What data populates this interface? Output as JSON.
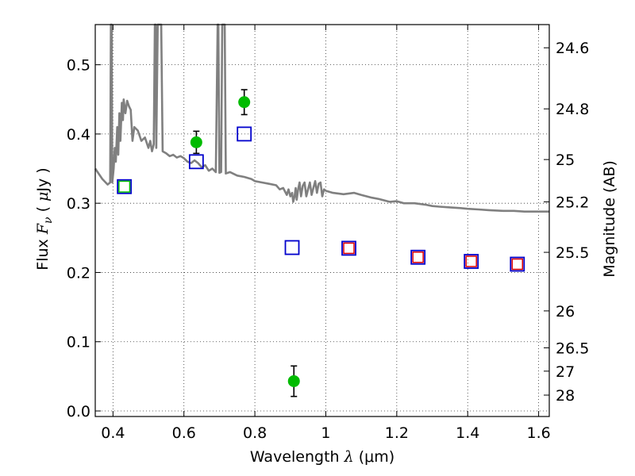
{
  "chart_data": {
    "type": "scatter",
    "xlabel": "Wavelength  λ (μm)",
    "xlabel_parts": {
      "text": "Wavelength  ",
      "symbol": "λ",
      "unit": " (μm)"
    },
    "ylabel_parts": {
      "text": "Flux  ",
      "symbol": "F",
      "subscript": "ν",
      "unit_open": "  ( ",
      "mu": "μ",
      "unit": "Jy )"
    },
    "y2label": "Magnitude (AB)",
    "xlim": [
      0.35,
      1.63
    ],
    "ylim": [
      -0.008,
      0.558
    ],
    "x_ticks": [
      {
        "v": 0.4,
        "label": "0.4"
      },
      {
        "v": 0.6,
        "label": "0.6"
      },
      {
        "v": 0.8,
        "label": "0.8"
      },
      {
        "v": 1.0,
        "label": "1"
      },
      {
        "v": 1.2,
        "label": "1.2"
      },
      {
        "v": 1.4,
        "label": "1.4"
      },
      {
        "v": 1.6,
        "label": "1.6"
      }
    ],
    "y_ticks": [
      {
        "v": 0.0,
        "label": "0.0"
      },
      {
        "v": 0.1,
        "label": "0.1"
      },
      {
        "v": 0.2,
        "label": "0.2"
      },
      {
        "v": 0.3,
        "label": "0.3"
      },
      {
        "v": 0.4,
        "label": "0.4"
      },
      {
        "v": 0.5,
        "label": "0.5"
      }
    ],
    "y2_ticks": [
      {
        "flux": 0.5245,
        "label": "24.6"
      },
      {
        "flux": 0.4363,
        "label": "24.8"
      },
      {
        "flux": 0.3631,
        "label": "25"
      },
      {
        "flux": 0.302,
        "label": "25.2"
      },
      {
        "flux": 0.2291,
        "label": "25.5"
      },
      {
        "flux": 0.1445,
        "label": "26"
      },
      {
        "flux": 0.0912,
        "label": "26.5"
      },
      {
        "flux": 0.0575,
        "label": "27"
      },
      {
        "flux": 0.0229,
        "label": "28"
      }
    ],
    "grid": true,
    "series": [
      {
        "kind": "line",
        "color": "#808080",
        "points": [
          [
            0.35,
            0.35
          ],
          [
            0.37,
            0.335
          ],
          [
            0.385,
            0.327
          ],
          [
            0.392,
            0.33
          ],
          [
            0.394,
            0.56
          ],
          [
            0.396,
            0.56
          ],
          [
            0.398,
            0.33
          ],
          [
            0.402,
            0.35
          ],
          [
            0.405,
            0.38
          ],
          [
            0.408,
            0.36
          ],
          [
            0.412,
            0.41
          ],
          [
            0.415,
            0.37
          ],
          [
            0.418,
            0.43
          ],
          [
            0.421,
            0.39
          ],
          [
            0.425,
            0.445
          ],
          [
            0.428,
            0.42
          ],
          [
            0.43,
            0.45
          ],
          [
            0.435,
            0.43
          ],
          [
            0.44,
            0.448
          ],
          [
            0.445,
            0.44
          ],
          [
            0.45,
            0.435
          ],
          [
            0.455,
            0.39
          ],
          [
            0.46,
            0.41
          ],
          [
            0.47,
            0.405
          ],
          [
            0.48,
            0.39
          ],
          [
            0.49,
            0.395
          ],
          [
            0.5,
            0.38
          ],
          [
            0.505,
            0.39
          ],
          [
            0.51,
            0.375
          ],
          [
            0.515,
            0.385
          ],
          [
            0.518,
            0.56
          ],
          [
            0.52,
            0.56
          ],
          [
            0.522,
            0.38
          ],
          [
            0.526,
            0.56
          ],
          [
            0.528,
            0.56
          ],
          [
            0.532,
            0.56
          ],
          [
            0.536,
            0.56
          ],
          [
            0.54,
            0.375
          ],
          [
            0.55,
            0.372
          ],
          [
            0.56,
            0.368
          ],
          [
            0.57,
            0.37
          ],
          [
            0.58,
            0.366
          ],
          [
            0.59,
            0.368
          ],
          [
            0.6,
            0.365
          ],
          [
            0.61,
            0.36
          ],
          [
            0.62,
            0.358
          ],
          [
            0.63,
            0.362
          ],
          [
            0.64,
            0.358
          ],
          [
            0.65,
            0.352
          ],
          [
            0.66,
            0.355
          ],
          [
            0.67,
            0.347
          ],
          [
            0.68,
            0.35
          ],
          [
            0.69,
            0.345
          ],
          [
            0.695,
            0.56
          ],
          [
            0.697,
            0.56
          ],
          [
            0.7,
            0.344
          ],
          [
            0.705,
            0.345
          ],
          [
            0.708,
            0.56
          ],
          [
            0.71,
            0.56
          ],
          [
            0.713,
            0.56
          ],
          [
            0.715,
            0.56
          ],
          [
            0.718,
            0.343
          ],
          [
            0.73,
            0.345
          ],
          [
            0.75,
            0.34
          ],
          [
            0.77,
            0.338
          ],
          [
            0.79,
            0.335
          ],
          [
            0.8,
            0.332
          ],
          [
            0.82,
            0.33
          ],
          [
            0.84,
            0.328
          ],
          [
            0.86,
            0.326
          ],
          [
            0.87,
            0.32
          ],
          [
            0.88,
            0.322
          ],
          [
            0.89,
            0.312
          ],
          [
            0.895,
            0.32
          ],
          [
            0.9,
            0.31
          ],
          [
            0.905,
            0.315
          ],
          [
            0.908,
            0.302
          ],
          [
            0.912,
            0.31
          ],
          [
            0.915,
            0.322
          ],
          [
            0.918,
            0.305
          ],
          [
            0.922,
            0.32
          ],
          [
            0.926,
            0.33
          ],
          [
            0.93,
            0.31
          ],
          [
            0.935,
            0.325
          ],
          [
            0.94,
            0.33
          ],
          [
            0.945,
            0.31
          ],
          [
            0.95,
            0.32
          ],
          [
            0.955,
            0.33
          ],
          [
            0.96,
            0.312
          ],
          [
            0.965,
            0.322
          ],
          [
            0.97,
            0.332
          ],
          [
            0.975,
            0.315
          ],
          [
            0.98,
            0.328
          ],
          [
            0.985,
            0.33
          ],
          [
            0.99,
            0.31
          ],
          [
            0.995,
            0.32
          ],
          [
            1.0,
            0.318
          ],
          [
            1.02,
            0.315
          ],
          [
            1.05,
            0.313
          ],
          [
            1.08,
            0.315
          ],
          [
            1.1,
            0.312
          ],
          [
            1.13,
            0.308
          ],
          [
            1.15,
            0.306
          ],
          [
            1.18,
            0.302
          ],
          [
            1.2,
            0.303
          ],
          [
            1.22,
            0.3
          ],
          [
            1.25,
            0.3
          ],
          [
            1.28,
            0.298
          ],
          [
            1.3,
            0.296
          ],
          [
            1.32,
            0.295
          ],
          [
            1.35,
            0.294
          ],
          [
            1.38,
            0.293
          ],
          [
            1.4,
            0.292
          ],
          [
            1.43,
            0.291
          ],
          [
            1.46,
            0.29
          ],
          [
            1.5,
            0.289
          ],
          [
            1.53,
            0.289
          ],
          [
            1.56,
            0.288
          ],
          [
            1.6,
            0.288
          ],
          [
            1.63,
            0.288
          ]
        ]
      },
      {
        "kind": "scatter",
        "marker": "circle",
        "color": "#00bb00",
        "points": [
          {
            "x": 0.635,
            "y": 0.388,
            "err": 0.016
          },
          {
            "x": 0.77,
            "y": 0.446,
            "err": 0.018
          },
          {
            "x": 0.91,
            "y": 0.043,
            "err": 0.022
          }
        ]
      },
      {
        "kind": "scatter",
        "marker": "square-open",
        "color": "#0000cc",
        "points": [
          {
            "x": 0.432,
            "y": 0.324
          },
          {
            "x": 0.635,
            "y": 0.36
          },
          {
            "x": 0.77,
            "y": 0.4
          },
          {
            "x": 0.905,
            "y": 0.236
          },
          {
            "x": 1.065,
            "y": 0.235
          },
          {
            "x": 1.26,
            "y": 0.222
          },
          {
            "x": 1.41,
            "y": 0.216
          },
          {
            "x": 1.54,
            "y": 0.212
          }
        ]
      },
      {
        "kind": "scatter",
        "marker": "square-open",
        "color": "#dd0000",
        "points": [
          {
            "x": 1.065,
            "y": 0.235
          },
          {
            "x": 1.26,
            "y": 0.222
          },
          {
            "x": 1.41,
            "y": 0.216
          },
          {
            "x": 1.54,
            "y": 0.212
          }
        ]
      },
      {
        "kind": "scatter",
        "marker": "square-open",
        "color": "#00bb00",
        "points": [
          {
            "x": 0.432,
            "y": 0.324
          }
        ]
      }
    ]
  }
}
